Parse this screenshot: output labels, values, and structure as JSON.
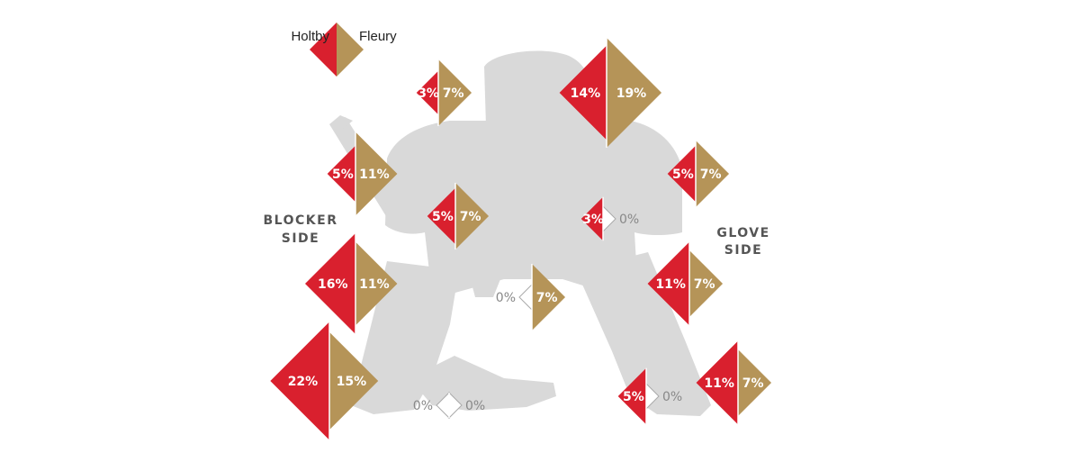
{
  "legend": {
    "left": "Holtby",
    "right": "Fleury"
  },
  "side_labels": {
    "blocker": [
      "BLOCKER",
      "SIDE"
    ],
    "glove": [
      "GLOVE",
      "SIDE"
    ]
  },
  "colors": {
    "holtby": "#d9202e",
    "fleury": "#b59458",
    "silhouette": "#d9d9d9",
    "zero_outline": "#aaaaaa"
  },
  "zones": [
    {
      "id": "top-center-left",
      "holtby": 3,
      "fleury": 7,
      "holtby_label": "3%",
      "fleury_label": "7%"
    },
    {
      "id": "top-right",
      "holtby": 14,
      "fleury": 19,
      "holtby_label": "14%",
      "fleury_label": "19%"
    },
    {
      "id": "upper-blocker",
      "holtby": 5,
      "fleury": 11,
      "holtby_label": "5%",
      "fleury_label": "11%"
    },
    {
      "id": "upper-glove",
      "holtby": 5,
      "fleury": 7,
      "holtby_label": "5%",
      "fleury_label": "7%"
    },
    {
      "id": "middle-left",
      "holtby": 5,
      "fleury": 7,
      "holtby_label": "5%",
      "fleury_label": "7%"
    },
    {
      "id": "middle-right",
      "holtby": 3,
      "fleury": 0,
      "holtby_label": "3%",
      "fleury_label": "0%"
    },
    {
      "id": "mid-blocker",
      "holtby": 16,
      "fleury": 11,
      "holtby_label": "16%",
      "fleury_label": "11%"
    },
    {
      "id": "mid-glove",
      "holtby": 11,
      "fleury": 7,
      "holtby_label": "11%",
      "fleury_label": "7%"
    },
    {
      "id": "five-hole",
      "holtby": 0,
      "fleury": 7,
      "holtby_label": "0%",
      "fleury_label": "7%"
    },
    {
      "id": "low-blocker",
      "holtby": 22,
      "fleury": 15,
      "holtby_label": "22%",
      "fleury_label": "15%"
    },
    {
      "id": "low-center",
      "holtby": 0,
      "fleury": 0,
      "holtby_label": "0%",
      "fleury_label": "0%"
    },
    {
      "id": "low-right-inner",
      "holtby": 5,
      "fleury": 0,
      "holtby_label": "5%",
      "fleury_label": "0%"
    },
    {
      "id": "low-glove",
      "holtby": 11,
      "fleury": 7,
      "holtby_label": "11%",
      "fleury_label": "7%"
    }
  ]
}
